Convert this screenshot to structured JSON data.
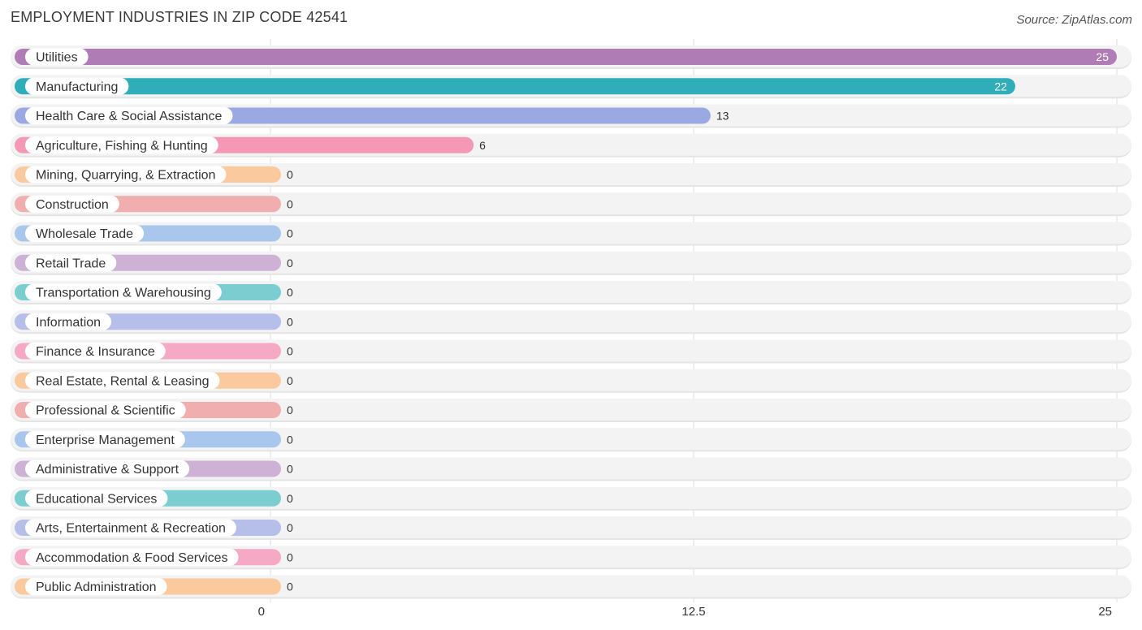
{
  "chart_data": {
    "type": "bar",
    "orientation": "horizontal",
    "title": "EMPLOYMENT INDUSTRIES IN ZIP CODE 42541",
    "source": "Source: ZipAtlas.com",
    "xlim": [
      0,
      25
    ],
    "xticks": [
      {
        "value": 0,
        "label": "0"
      },
      {
        "value": 12.5,
        "label": "12.5"
      },
      {
        "value": 25,
        "label": "25"
      }
    ],
    "categories": [
      "Utilities",
      "Manufacturing",
      "Health Care & Social Assistance",
      "Agriculture, Fishing & Hunting",
      "Mining, Quarrying, & Extraction",
      "Construction",
      "Wholesale Trade",
      "Retail Trade",
      "Transportation & Warehousing",
      "Information",
      "Finance & Insurance",
      "Real Estate, Rental & Leasing",
      "Professional & Scientific",
      "Enterprise Management",
      "Administrative & Support",
      "Educational Services",
      "Arts, Entertainment & Recreation",
      "Accommodation & Food Services",
      "Public Administration"
    ],
    "values": [
      25,
      22,
      13,
      6,
      0,
      0,
      0,
      0,
      0,
      0,
      0,
      0,
      0,
      0,
      0,
      0,
      0,
      0,
      0
    ],
    "value_labels": [
      "25",
      "22",
      "13",
      "6",
      "0",
      "0",
      "0",
      "0",
      "0",
      "0",
      "0",
      "0",
      "0",
      "0",
      "0",
      "0",
      "0",
      "0",
      "0"
    ],
    "colors": [
      "#b07cb5",
      "#2fadb8",
      "#9ba9e3",
      "#f598b6",
      "#fbc99e",
      "#f0aeae",
      "#a9c7ec",
      "#cdb2d6",
      "#7bcdd0",
      "#b5bfea",
      "#f6a9c4",
      "#fbc99e",
      "#f0aeae",
      "#a9c7ec",
      "#cdb2d6",
      "#7bcdd0",
      "#b5bfea",
      "#f6a9c4",
      "#fbc99e"
    ],
    "grid": true,
    "legend": "none"
  }
}
